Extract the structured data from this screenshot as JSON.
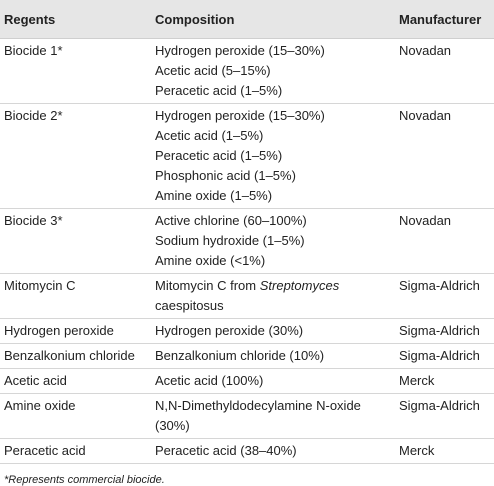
{
  "table": {
    "header": [
      "Regents",
      "Composition",
      "Manufacturer"
    ],
    "rows": [
      {
        "regent": "Biocide 1*",
        "composition": [
          "Hydrogen peroxide (15–30%)",
          "Acetic acid (5–15%)",
          "Peracetic acid (1–5%)"
        ],
        "manufacturer": "Novadan"
      },
      {
        "regent": "Biocide 2*",
        "composition": [
          "Hydrogen peroxide (15–30%)",
          "Acetic acid (1–5%)",
          "Peracetic acid (1–5%)",
          "Phosphonic acid (1–5%)",
          "Amine oxide (1–5%)"
        ],
        "manufacturer": "Novadan"
      },
      {
        "regent": "Biocide 3*",
        "composition": [
          "Active chlorine (60–100%)",
          "Sodium hydroxide (1–5%)",
          "Amine oxide (<1%)"
        ],
        "manufacturer": "Novadan"
      },
      {
        "regent": "Mitomycin C",
        "composition": [
          {
            "text": "Mitomycin C from ",
            "em": "Streptomyces"
          },
          "caespitosus"
        ],
        "manufacturer": "Sigma-Aldrich"
      },
      {
        "regent": "Hydrogen peroxide",
        "composition": [
          "Hydrogen peroxide (30%)"
        ],
        "manufacturer": "Sigma-Aldrich"
      },
      {
        "regent": "Benzalkonium chloride",
        "composition": [
          "Benzalkonium chloride (10%)"
        ],
        "manufacturer": "Sigma-Aldrich"
      },
      {
        "regent": "Acetic acid",
        "composition": [
          "Acetic acid (100%)"
        ],
        "manufacturer": "Merck"
      },
      {
        "regent": "Amine oxide",
        "composition": [
          "N,N-Dimethyldodecylamine N-oxide",
          "(30%)"
        ],
        "manufacturer": "Sigma-Aldrich"
      },
      {
        "regent": "Peracetic acid",
        "composition": [
          "Peracetic acid (38–40%)"
        ],
        "manufacturer": "Merck"
      }
    ],
    "footnote": "*Represents commercial biocide."
  }
}
